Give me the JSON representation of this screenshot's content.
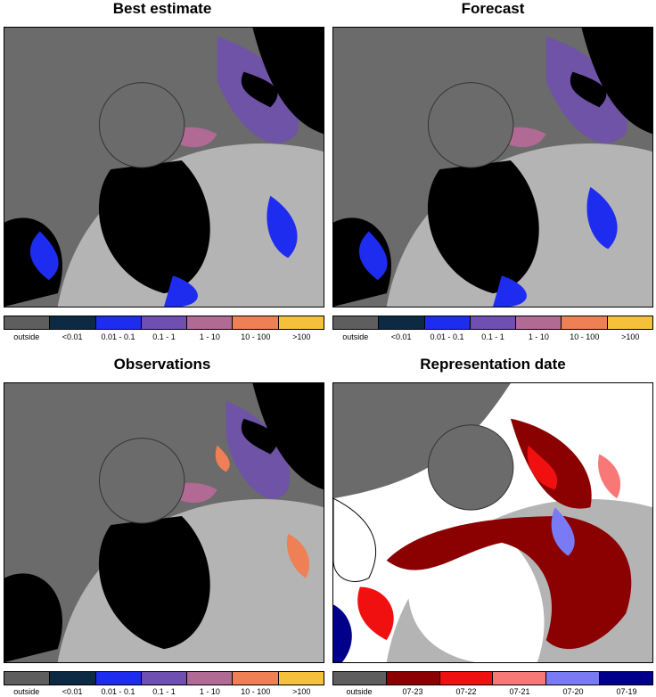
{
  "panels": {
    "best_estimate": {
      "title": "Best estimate"
    },
    "forecast": {
      "title": "Forecast"
    },
    "observations": {
      "title": "Observations"
    },
    "representation_date": {
      "title": "Representation date"
    }
  },
  "legend_concentration": {
    "items": [
      {
        "label": "outside",
        "color": "#5e5e5e"
      },
      {
        "label": "<0.01",
        "color": "#0d2a45"
      },
      {
        "label": "0.01 - 0.1",
        "color": "#1e2cf0"
      },
      {
        "label": "0.1 - 1",
        "color": "#6f4fb2"
      },
      {
        "label": "1 - 10",
        "color": "#b06a94"
      },
      {
        "label": "10 - 100",
        "color": "#ef7f55"
      },
      {
        "label": ">100",
        "color": "#f5c13a"
      }
    ]
  },
  "legend_date": {
    "items": [
      {
        "label": "outside",
        "color": "#5e5e5e"
      },
      {
        "label": "07-23",
        "color": "#8b0000"
      },
      {
        "label": "07-22",
        "color": "#f01010"
      },
      {
        "label": "07-21",
        "color": "#f87878"
      },
      {
        "label": "07-20",
        "color": "#7a7af5"
      },
      {
        "label": "07-19",
        "color": "#00008b"
      }
    ]
  },
  "colors": {
    "land": "#000000",
    "ocean_outside": "#6b6b6b",
    "ocean_inside": "#b4b4b4",
    "no_data": "#ffffff"
  }
}
